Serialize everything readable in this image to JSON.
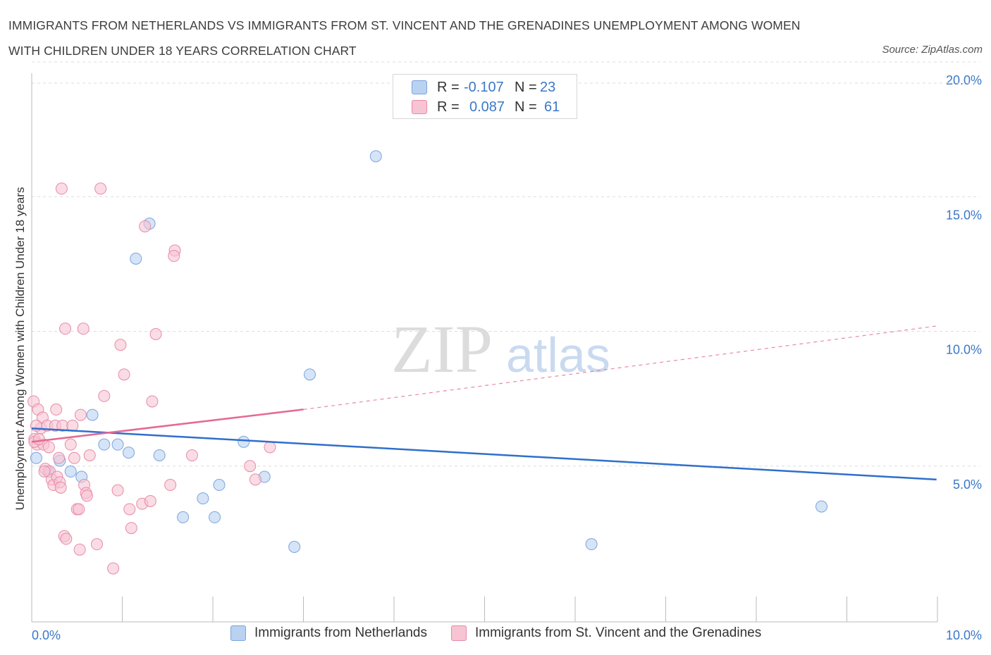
{
  "title_line1": "IMMIGRANTS FROM NETHERLANDS VS IMMIGRANTS FROM ST. VINCENT AND THE GRENADINES UNEMPLOYMENT AMONG WOMEN",
  "title_line2": "WITH CHILDREN UNDER 18 YEARS CORRELATION CHART",
  "source": "Source: ZipAtlas.com",
  "watermark": {
    "zip": "ZIP",
    "atlas": "atlas"
  },
  "legend": {
    "r_label": "R =",
    "n_label": "N =",
    "rows": [
      {
        "r": "-0.107",
        "n": "23"
      },
      {
        "r": "0.087",
        "n": "61"
      }
    ]
  },
  "colors": {
    "blue_fill": "#b9d2f2",
    "blue_stroke": "#7aa5dc",
    "blue_line": "#2f6fcc",
    "pink_fill": "#f6c4d3",
    "pink_stroke": "#e88aa8",
    "pink_line": "#e46a92",
    "axis_text": "#3b78c7",
    "grid": "#dddddd"
  },
  "chart_data": {
    "type": "scatter",
    "title": "IMMIGRANTS FROM NETHERLANDS VS IMMIGRANTS FROM ST. VINCENT AND THE GRENADINES UNEMPLOYMENT AMONG WOMEN WITH CHILDREN UNDER 18 YEARS CORRELATION CHART",
    "xlabel": "",
    "ylabel": "Unemployment Among Women with Children Under 18 years",
    "xlim": [
      0,
      10
    ],
    "ylim": [
      0,
      20
    ],
    "x_ticks": [
      "0.0%",
      "10.0%"
    ],
    "y_ticks": [
      {
        "v": 5,
        "label": "5.0%"
      },
      {
        "v": 10,
        "label": "10.0%"
      },
      {
        "v": 15,
        "label": "15.0%"
      },
      {
        "v": 20,
        "label": "20.0%"
      }
    ],
    "grid": true,
    "legend_position": "top-center",
    "series": [
      {
        "name": "Immigrants from Netherlands",
        "color": "blue",
        "r": -0.107,
        "n": 23,
        "trend": {
          "x0": 0.0,
          "y0": 6.4,
          "x1": 9.99,
          "y1": 4.5,
          "dashed_to": null
        },
        "points": [
          [
            0.05,
            5.3
          ],
          [
            0.18,
            4.8
          ],
          [
            0.31,
            5.2
          ],
          [
            0.43,
            4.8
          ],
          [
            0.55,
            4.6
          ],
          [
            0.67,
            6.9
          ],
          [
            0.8,
            5.8
          ],
          [
            0.95,
            5.8
          ],
          [
            1.07,
            5.5
          ],
          [
            1.15,
            12.7
          ],
          [
            1.3,
            14.0
          ],
          [
            1.41,
            5.4
          ],
          [
            1.67,
            3.1
          ],
          [
            1.89,
            3.8
          ],
          [
            2.02,
            3.1
          ],
          [
            2.07,
            4.3
          ],
          [
            2.34,
            5.9
          ],
          [
            2.57,
            4.6
          ],
          [
            2.9,
            2.0
          ],
          [
            3.07,
            8.4
          ],
          [
            3.8,
            16.5
          ],
          [
            6.18,
            2.1
          ],
          [
            8.72,
            3.5
          ]
        ]
      },
      {
        "name": "Immigrants from St. Vincent and the Grenadines",
        "color": "pink",
        "r": 0.087,
        "n": 61,
        "trend": {
          "x0": 0.0,
          "y0": 5.9,
          "x1": 3.0,
          "y1": 7.1,
          "dashed_to": {
            "x": 9.99,
            "y": 10.2
          }
        },
        "points": [
          [
            0.02,
            7.4
          ],
          [
            0.03,
            6.0
          ],
          [
            0.06,
            5.8
          ],
          [
            0.07,
            7.1
          ],
          [
            0.1,
            6.4
          ],
          [
            0.12,
            6.8
          ],
          [
            0.13,
            5.8
          ],
          [
            0.15,
            4.9
          ],
          [
            0.17,
            6.5
          ],
          [
            0.19,
            5.7
          ],
          [
            0.2,
            4.8
          ],
          [
            0.22,
            4.5
          ],
          [
            0.24,
            4.3
          ],
          [
            0.26,
            6.5
          ],
          [
            0.27,
            7.1
          ],
          [
            0.28,
            4.6
          ],
          [
            0.3,
            5.3
          ],
          [
            0.31,
            4.4
          ],
          [
            0.32,
            4.2
          ],
          [
            0.33,
            15.3
          ],
          [
            0.34,
            6.5
          ],
          [
            0.36,
            2.4
          ],
          [
            0.37,
            10.1
          ],
          [
            0.38,
            2.3
          ],
          [
            0.43,
            5.8
          ],
          [
            0.45,
            6.5
          ],
          [
            0.47,
            5.3
          ],
          [
            0.5,
            3.4
          ],
          [
            0.52,
            3.4
          ],
          [
            0.53,
            1.9
          ],
          [
            0.54,
            6.9
          ],
          [
            0.57,
            10.1
          ],
          [
            0.58,
            4.3
          ],
          [
            0.6,
            4.0
          ],
          [
            0.61,
            3.9
          ],
          [
            0.64,
            5.4
          ],
          [
            0.72,
            2.1
          ],
          [
            0.76,
            15.3
          ],
          [
            0.8,
            7.6
          ],
          [
            0.9,
            1.2
          ],
          [
            0.95,
            4.1
          ],
          [
            0.98,
            9.5
          ],
          [
            1.02,
            8.4
          ],
          [
            1.08,
            3.4
          ],
          [
            1.1,
            2.7
          ],
          [
            1.22,
            3.6
          ],
          [
            1.25,
            13.9
          ],
          [
            1.31,
            3.7
          ],
          [
            1.33,
            7.4
          ],
          [
            1.37,
            9.9
          ],
          [
            1.53,
            4.3
          ],
          [
            1.58,
            13.0
          ],
          [
            1.57,
            12.8
          ],
          [
            1.77,
            5.4
          ],
          [
            2.41,
            5.0
          ],
          [
            2.47,
            4.5
          ],
          [
            2.63,
            5.7
          ],
          [
            0.03,
            5.9
          ],
          [
            0.05,
            6.5
          ],
          [
            0.08,
            6.0
          ],
          [
            0.14,
            4.8
          ]
        ]
      }
    ]
  },
  "bottom_legend": [
    {
      "label": "Immigrants from Netherlands"
    },
    {
      "label": "Immigrants from St. Vincent and the Grenadines"
    }
  ]
}
